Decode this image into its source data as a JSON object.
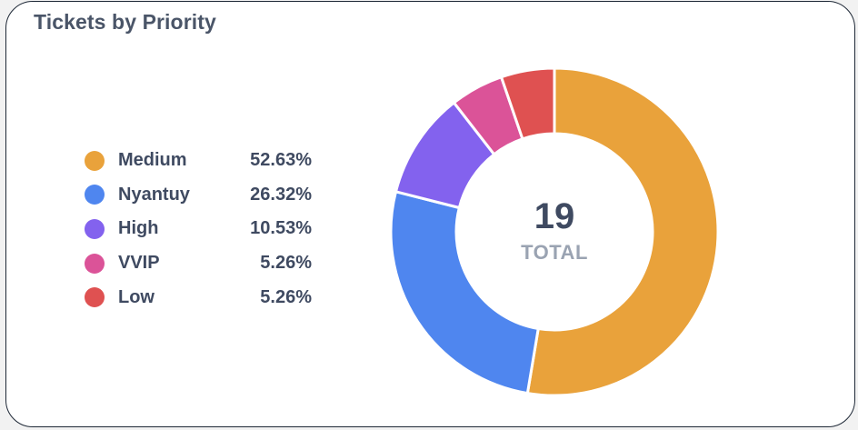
{
  "card": {
    "title": "Tickets by Priority"
  },
  "chart_data": {
    "type": "pie",
    "variant": "donut",
    "title": "Tickets by Priority",
    "categories": [
      "Medium",
      "Nyantuy",
      "High",
      "VVIP",
      "Low"
    ],
    "values": [
      10,
      5,
      2,
      1,
      1
    ],
    "percent_labels": [
      "52.63%",
      "26.32%",
      "10.53%",
      "5.26%",
      "5.26%"
    ],
    "colors": [
      "#e9a23b",
      "#4f86ef",
      "#8362ee",
      "#db5398",
      "#df5151"
    ],
    "legend_position": "left",
    "center": {
      "total": "19",
      "label": "TOTAL"
    }
  }
}
